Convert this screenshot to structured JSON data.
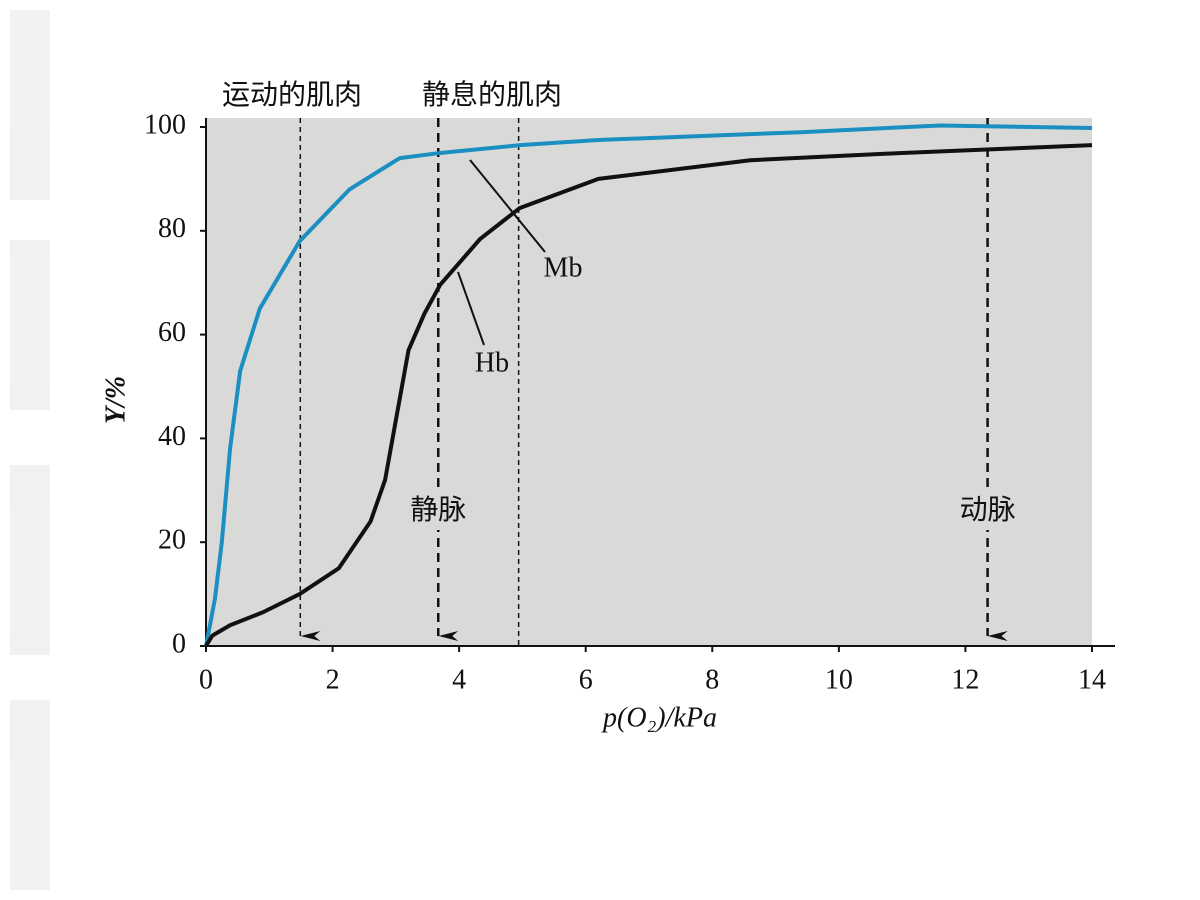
{
  "chart_data": {
    "type": "line",
    "top_labels": [
      "运动的肌肉",
      "静息的肌肉"
    ],
    "x_label": "p(O₂)/kPa",
    "y_label": "Y/%",
    "xlim": [
      0,
      14
    ],
    "xticks": [
      0,
      2,
      4,
      6,
      8,
      10,
      12,
      14
    ],
    "ylim": [
      0,
      100
    ],
    "yticks": [
      0,
      20,
      40,
      60,
      80,
      100
    ],
    "series": [
      {
        "name": "Mb",
        "color": "#1b8fc2",
        "x": [
          0,
          0.14,
          0.25,
          0.38,
          0.54,
          0.85,
          1.48,
          2.27,
          3.06,
          3.7,
          4.96,
          6.2,
          9.4,
          11.6,
          14
        ],
        "values": [
          0,
          9,
          20,
          38,
          53,
          65,
          78,
          88,
          94,
          95,
          96.5,
          97.5,
          99,
          100.3,
          99.8
        ]
      },
      {
        "name": "Hb",
        "color": "#111111",
        "x": [
          0,
          0.1,
          0.38,
          0.9,
          1.48,
          2.1,
          2.6,
          2.83,
          3.0,
          3.2,
          3.45,
          3.7,
          4.33,
          4.96,
          6.2,
          8.6,
          11,
          14
        ],
        "values": [
          0,
          2,
          4,
          6.5,
          10,
          15,
          24,
          32,
          43.5,
          57,
          64,
          69.6,
          78.4,
          84.4,
          90,
          93.6,
          95,
          96.5
        ]
      }
    ],
    "markers": [
      {
        "x": 1.49,
        "arrow": true
      },
      {
        "x": 3.67,
        "arrow": true,
        "label": "静脉"
      },
      {
        "x": 4.94,
        "arrow": false
      },
      {
        "x": 12.35,
        "arrow": true,
        "label": "动脉"
      }
    ]
  }
}
